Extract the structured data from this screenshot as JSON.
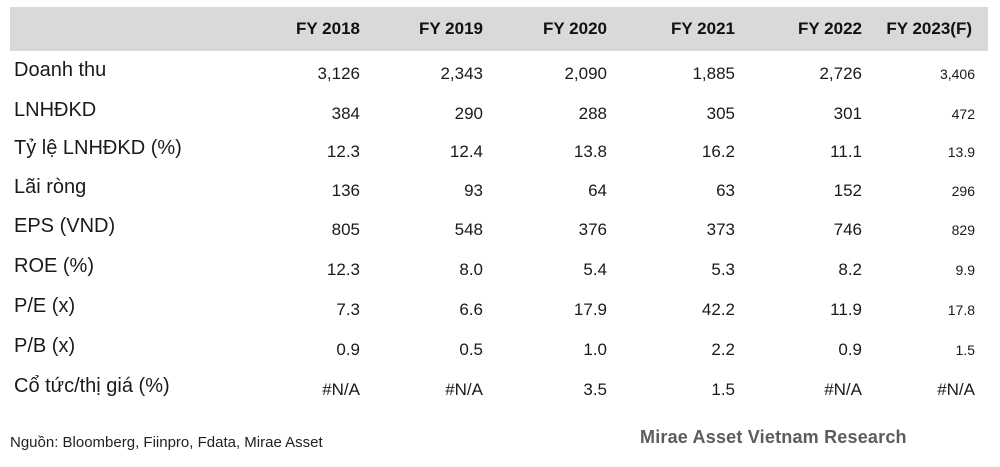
{
  "table": {
    "columns": [
      "FY 2018",
      "FY 2019",
      "FY 2020",
      "FY 2021",
      "FY 2022",
      "FY 2023(F)"
    ],
    "rows": [
      {
        "label": "Doanh thu",
        "values": [
          "3,126",
          "2,343",
          "2,090",
          "1,885",
          "2,726",
          "3,406"
        ]
      },
      {
        "label": "LNHĐKD",
        "values": [
          "384",
          "290",
          "288",
          "305",
          "301",
          "472"
        ]
      },
      {
        "label": "Tỷ lệ LNHĐKD (%)",
        "values": [
          "12.3",
          "12.4",
          "13.8",
          "16.2",
          "11.1",
          "13.9"
        ]
      },
      {
        "label": "Lãi ròng",
        "values": [
          "136",
          "93",
          "64",
          "63",
          "152",
          "296"
        ]
      },
      {
        "label": "EPS (VND)",
        "values": [
          "805",
          "548",
          "376",
          "373",
          "746",
          "829"
        ]
      },
      {
        "label": "ROE (%)",
        "values": [
          "12.3",
          "8.0",
          "5.4",
          "5.3",
          "8.2",
          "9.9"
        ]
      },
      {
        "label": "P/E (x)",
        "values": [
          "7.3",
          "6.6",
          "17.9",
          "42.2",
          "11.9",
          "17.8"
        ]
      },
      {
        "label": "P/B (x)",
        "values": [
          "0.9",
          "0.5",
          "1.0",
          "2.2",
          "0.9",
          "1.5"
        ]
      },
      {
        "label": "Cổ tức/thị giá (%)",
        "values": [
          "#N/A",
          "#N/A",
          "3.5",
          "1.5",
          "#N/A",
          "#N/A"
        ]
      }
    ]
  },
  "footer": {
    "source": "Nguồn: Bloomberg, Fiinpro, Fdata, Mirae Asset",
    "research": "Mirae Asset Vietnam Research"
  }
}
